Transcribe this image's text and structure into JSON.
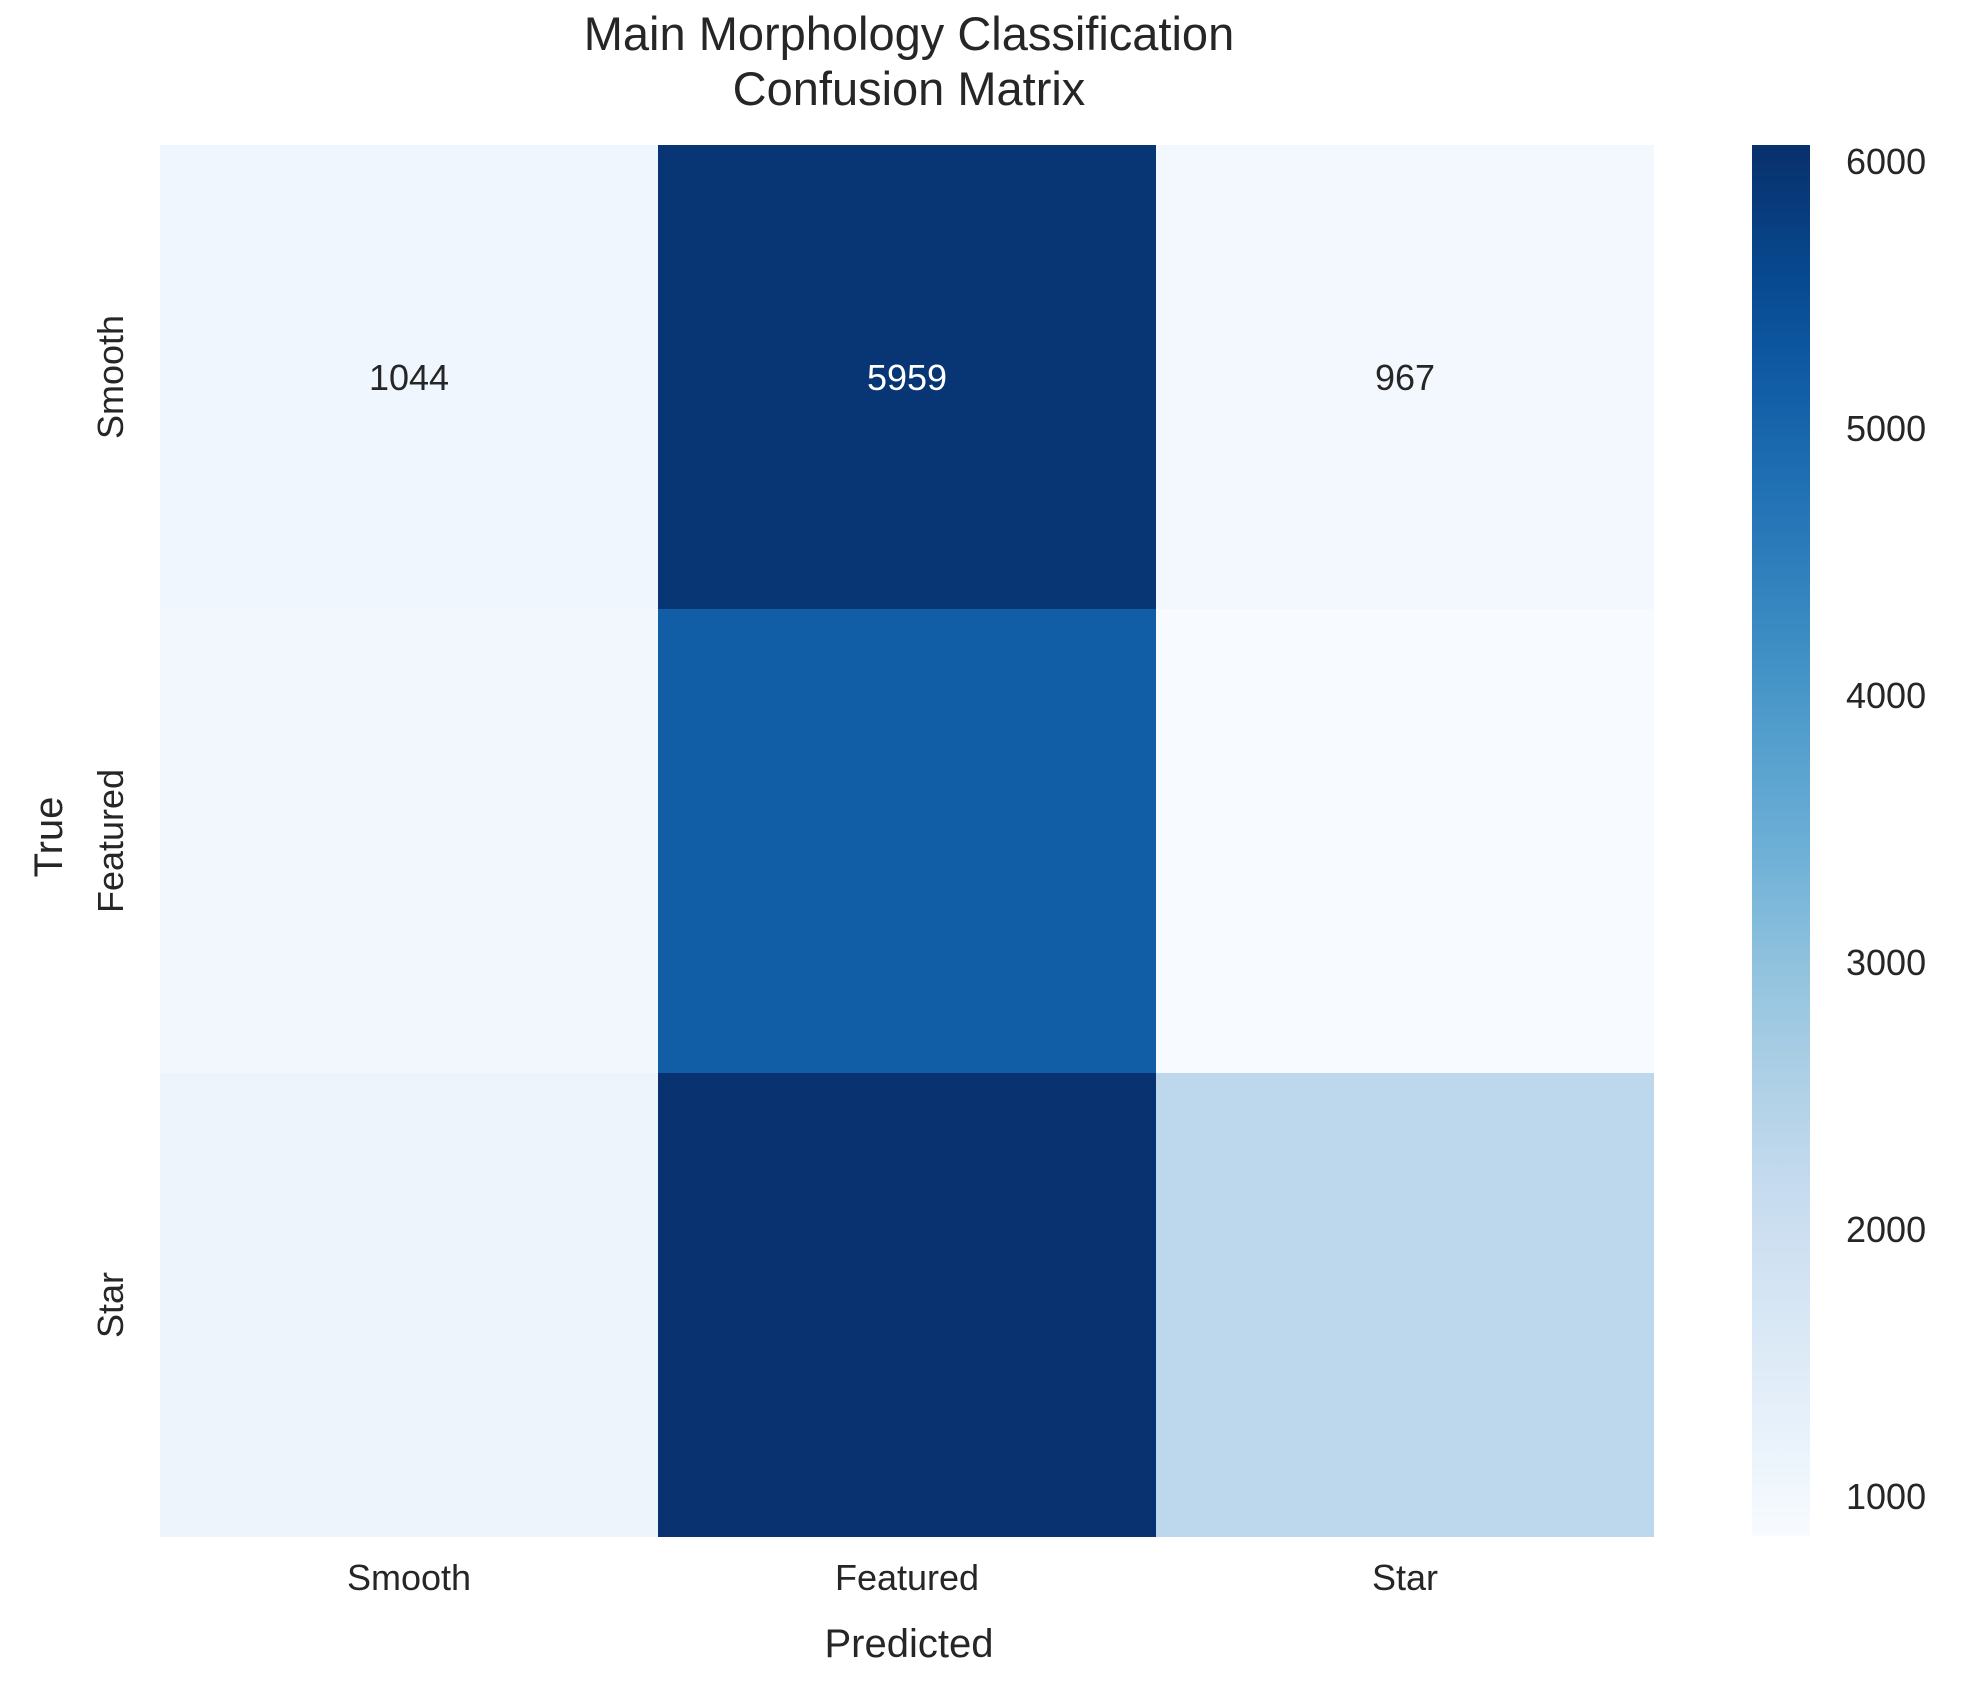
{
  "chart_data": {
    "type": "heatmap",
    "title_lines": [
      "Main Morphology Classification",
      "Confusion Matrix"
    ],
    "xlabel": "Predicted",
    "ylabel": "True",
    "x_categories": [
      "Smooth",
      "Featured",
      "Star"
    ],
    "y_categories": [
      "Smooth",
      "Featured",
      "Star"
    ],
    "values": [
      [
        1044,
        5959,
        967
      ],
      [
        1000,
        5150,
        850
      ],
      [
        1120,
        6000,
        2300
      ]
    ],
    "annotations": [
      [
        "1044",
        "5959",
        "967"
      ],
      [
        "",
        "",
        ""
      ],
      [
        "",
        "",
        ""
      ]
    ],
    "colormap": "Blues",
    "color_range": [
      850,
      6060
    ],
    "colorbar_ticks": [
      1000,
      2000,
      3000,
      4000,
      5000,
      6000
    ],
    "colorbar_tick_labels": [
      "1000",
      "2000",
      "3000",
      "4000",
      "5000",
      "6000"
    ]
  }
}
